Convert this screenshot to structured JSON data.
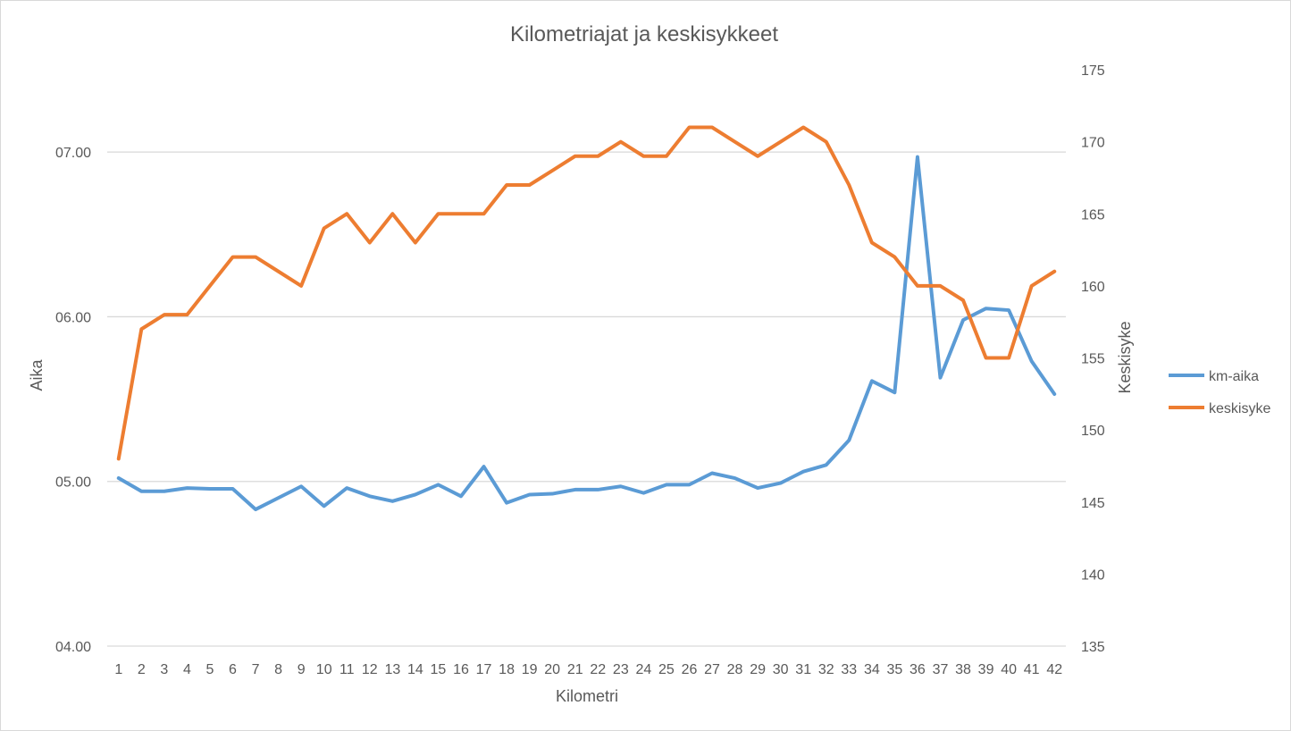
{
  "chart_data": {
    "type": "line",
    "title": "Kilometriajat ja keskisykkeet",
    "xlabel": "Kilometri",
    "ylabel": "Aika",
    "y2label": "Keskisyke",
    "x": [
      1,
      2,
      3,
      4,
      5,
      6,
      7,
      8,
      9,
      10,
      11,
      12,
      13,
      14,
      15,
      16,
      17,
      18,
      19,
      20,
      21,
      22,
      23,
      24,
      25,
      26,
      27,
      28,
      29,
      30,
      31,
      32,
      33,
      34,
      35,
      36,
      37,
      38,
      39,
      40,
      41,
      42
    ],
    "y_ticks": [
      {
        "value": 4,
        "label": "04.00"
      },
      {
        "value": 5,
        "label": "05.00"
      },
      {
        "value": 6,
        "label": "06.00"
      },
      {
        "value": 7,
        "label": "07.00"
      }
    ],
    "y2_ticks": [
      135,
      140,
      145,
      150,
      155,
      160,
      165,
      170,
      175
    ],
    "ylim": [
      4,
      7.5
    ],
    "y2lim": [
      135,
      175
    ],
    "grid": true,
    "legend_position": "right",
    "series": [
      {
        "name": "km-aika",
        "axis": "left",
        "color": "#5b9bd5",
        "values": [
          5.02,
          4.94,
          4.94,
          4.96,
          4.955,
          4.955,
          4.83,
          4.9,
          4.97,
          4.85,
          4.96,
          4.91,
          4.88,
          4.92,
          4.98,
          4.91,
          5.09,
          4.87,
          4.92,
          4.925,
          4.95,
          4.95,
          4.97,
          4.93,
          4.98,
          4.98,
          5.05,
          5.02,
          4.96,
          4.99,
          5.06,
          5.1,
          5.25,
          5.61,
          5.54,
          6.97,
          5.63,
          5.98,
          6.05,
          6.04,
          5.73,
          5.53
        ]
      },
      {
        "name": "keskisyke",
        "axis": "right",
        "color": "#ed7d31",
        "values": [
          148,
          157,
          158,
          158,
          160,
          162,
          162,
          161,
          160,
          164,
          165,
          163,
          165,
          163,
          165,
          165,
          165,
          167,
          167,
          168,
          169,
          169,
          170,
          169,
          169,
          171,
          171,
          170,
          169,
          170,
          171,
          170,
          167,
          163,
          162,
          160,
          160,
          159,
          155,
          155,
          160,
          161
        ]
      }
    ]
  }
}
